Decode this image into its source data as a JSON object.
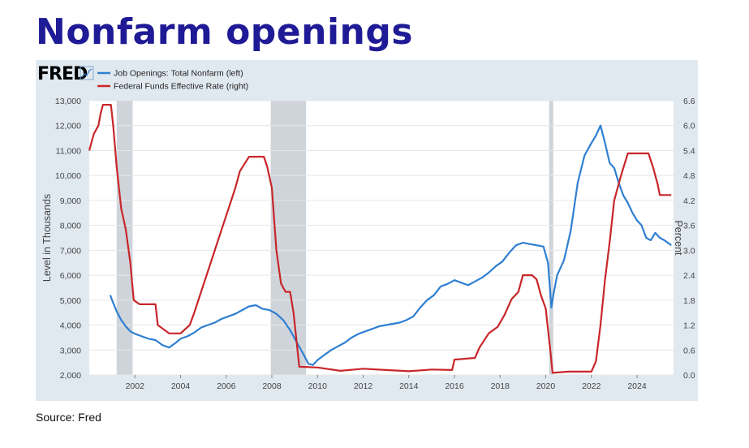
{
  "page": {
    "title": "Nonfarm openings",
    "source": "Source: Fred"
  },
  "fred": {
    "logo_text": "FRED",
    "logo_icon": "chart-line-icon"
  },
  "colors": {
    "title": "#1f1a96",
    "panel_bg": "#e1e9f0",
    "plot_bg": "#ffffff",
    "recession": "#cfd4db",
    "job_openings": "#2f7fd1",
    "fed_funds": "#c8262a"
  },
  "chart_data": {
    "type": "line",
    "title": "",
    "xlabel": "",
    "ylabel_left": "Level in Thousands",
    "ylabel_right": "Percent",
    "x_domain": [
      2000.0,
      2025.6
    ],
    "ylim_left": [
      2000,
      13000
    ],
    "ylim_right": [
      0.0,
      6.6
    ],
    "x_ticks": [
      2002,
      2004,
      2006,
      2008,
      2010,
      2012,
      2014,
      2016,
      2018,
      2020,
      2022,
      2024
    ],
    "y_ticks_left": [
      "2,000",
      "3,000",
      "4,000",
      "5,000",
      "6,000",
      "7,000",
      "8,000",
      "9,000",
      "10,000",
      "11,000",
      "12,000",
      "13,000"
    ],
    "y_ticks_right": [
      "0.0",
      "0.6",
      "1.2",
      "1.8",
      "2.4",
      "3.0",
      "3.6",
      "4.2",
      "4.8",
      "5.4",
      "6.0",
      "6.6"
    ],
    "grid": "horizontal",
    "legend_placement": "top-left",
    "recessions": [
      [
        2001.2,
        2001.9
      ],
      [
        2007.95,
        2009.5
      ],
      [
        2020.15,
        2020.33
      ]
    ],
    "series": [
      {
        "name": "Job Openings: Total Nonfarm (left)",
        "axis": "left",
        "x": [
          2000.92,
          2001.0,
          2001.2,
          2001.4,
          2001.6,
          2001.8,
          2002.0,
          2002.3,
          2002.6,
          2002.9,
          2003.2,
          2003.5,
          2003.8,
          2004.0,
          2004.3,
          2004.6,
          2004.9,
          2005.2,
          2005.5,
          2005.8,
          2006.1,
          2006.4,
          2006.7,
          2007.0,
          2007.3,
          2007.6,
          2007.9,
          2008.2,
          2008.5,
          2008.8,
          2009.1,
          2009.4,
          2009.6,
          2009.8,
          2010.0,
          2010.3,
          2010.6,
          2010.9,
          2011.2,
          2011.5,
          2011.8,
          2012.1,
          2012.4,
          2012.7,
          2013.0,
          2013.3,
          2013.6,
          2013.9,
          2014.2,
          2014.5,
          2014.8,
          2015.1,
          2015.4,
          2015.7,
          2016.0,
          2016.3,
          2016.6,
          2016.9,
          2017.2,
          2017.5,
          2017.8,
          2018.1,
          2018.4,
          2018.7,
          2019.0,
          2019.3,
          2019.6,
          2019.9,
          2020.1,
          2020.25,
          2020.33,
          2020.5,
          2020.8,
          2021.1,
          2021.4,
          2021.7,
          2022.0,
          2022.2,
          2022.4,
          2022.6,
          2022.8,
          2023.0,
          2023.2,
          2023.4,
          2023.6,
          2023.8,
          2024.0,
          2024.2,
          2024.4,
          2024.6,
          2024.8,
          2025.0,
          2025.2,
          2025.5
        ],
        "values": [
          5200,
          5000,
          4550,
          4200,
          3950,
          3750,
          3650,
          3550,
          3450,
          3400,
          3200,
          3100,
          3300,
          3450,
          3550,
          3700,
          3900,
          4000,
          4100,
          4250,
          4350,
          4450,
          4600,
          4750,
          4800,
          4650,
          4600,
          4450,
          4200,
          3800,
          3300,
          2800,
          2450,
          2400,
          2600,
          2800,
          3000,
          3150,
          3300,
          3500,
          3650,
          3750,
          3850,
          3950,
          4000,
          4050,
          4100,
          4200,
          4350,
          4700,
          5000,
          5200,
          5550,
          5650,
          5800,
          5700,
          5600,
          5750,
          5900,
          6100,
          6350,
          6550,
          6900,
          7200,
          7300,
          7250,
          7200,
          7150,
          6500,
          4700,
          5200,
          6000,
          6600,
          7800,
          9700,
          10800,
          11300,
          11600,
          12000,
          11300,
          10500,
          10300,
          9700,
          9200,
          8900,
          8500,
          8200,
          8000,
          7500,
          7400,
          7700,
          7500,
          7400,
          7200
        ]
      },
      {
        "name": "Federal Funds Effective Rate (right)",
        "axis": "right",
        "x": [
          2000.0,
          2000.2,
          2000.4,
          2000.5,
          2000.6,
          2000.8,
          2000.95,
          2001.05,
          2001.2,
          2001.4,
          2001.6,
          2001.8,
          2001.95,
          2002.2,
          2002.6,
          2002.9,
          2003.0,
          2003.5,
          2004.0,
          2004.4,
          2004.6,
          2004.9,
          2005.2,
          2005.5,
          2005.8,
          2006.1,
          2006.4,
          2006.6,
          2007.0,
          2007.4,
          2007.65,
          2007.8,
          2008.0,
          2008.2,
          2008.4,
          2008.6,
          2008.8,
          2008.95,
          2009.2,
          2010.0,
          2011.0,
          2012.0,
          2013.0,
          2014.0,
          2015.0,
          2015.9,
          2016.0,
          2016.9,
          2017.1,
          2017.5,
          2017.9,
          2018.2,
          2018.5,
          2018.8,
          2019.0,
          2019.4,
          2019.6,
          2019.8,
          2020.0,
          2020.2,
          2020.3,
          2021.0,
          2022.0,
          2022.2,
          2022.4,
          2022.6,
          2022.8,
          2023.0,
          2023.3,
          2023.6,
          2024.5,
          2024.7,
          2024.9,
          2025.0,
          2025.5
        ],
        "values": [
          5.4,
          5.8,
          6.0,
          6.3,
          6.5,
          6.5,
          6.5,
          6.0,
          5.0,
          4.0,
          3.5,
          2.7,
          1.8,
          1.7,
          1.7,
          1.7,
          1.2,
          1.0,
          1.0,
          1.2,
          1.5,
          2.0,
          2.5,
          3.0,
          3.5,
          4.0,
          4.5,
          4.9,
          5.25,
          5.25,
          5.25,
          5.0,
          4.5,
          3.0,
          2.2,
          2.0,
          2.0,
          1.5,
          0.2,
          0.18,
          0.1,
          0.15,
          0.12,
          0.09,
          0.13,
          0.12,
          0.37,
          0.41,
          0.66,
          1.0,
          1.16,
          1.45,
          1.82,
          2.0,
          2.4,
          2.4,
          2.3,
          1.9,
          1.6,
          0.6,
          0.05,
          0.08,
          0.08,
          0.33,
          1.2,
          2.3,
          3.2,
          4.2,
          4.8,
          5.33,
          5.33,
          5.0,
          4.6,
          4.33,
          4.33
        ]
      }
    ]
  }
}
